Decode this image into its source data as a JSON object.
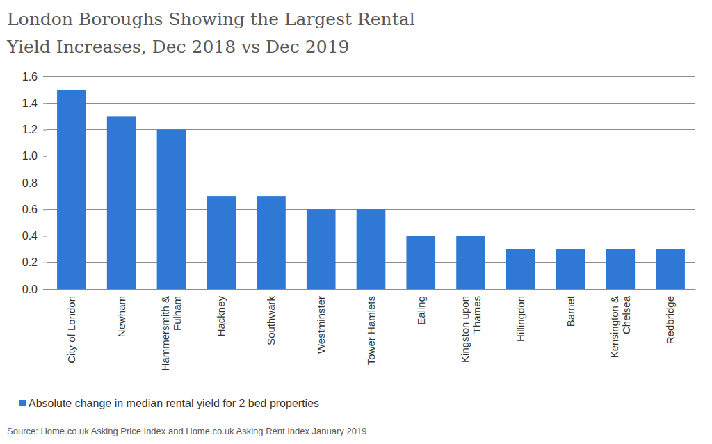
{
  "chart_data": {
    "type": "bar",
    "title": [
      "London Boroughs Showing the Largest  Rental",
      "Yield Increases, Dec 2018 vs Dec 2019"
    ],
    "categories": [
      "City of London",
      "Newham",
      "Hammersmith & Fulham",
      "Hackney",
      "Southwark",
      "Westminster",
      "Tower Hamlets",
      "Ealing",
      "Kingston upon Thames",
      "Hillingdon",
      "Barnet",
      "Kensington & Chelsea",
      "Redbridge"
    ],
    "series": [
      {
        "name": "Absolute change in median rental yield for 2 bed properties",
        "color": "#2f78d3",
        "values": [
          1.5,
          1.3,
          1.2,
          0.7,
          0.7,
          0.6,
          0.6,
          0.4,
          0.4,
          0.3,
          0.3,
          0.3,
          0.3
        ]
      }
    ],
    "ylim": [
      0,
      1.6
    ],
    "yticks": [
      {
        "value": 0,
        "label": "0.0"
      },
      0.2,
      0.4,
      0.6,
      0.8,
      {
        "value": 1,
        "label": "1.0"
      },
      1.2,
      1.4,
      1.6
    ],
    "grid": true,
    "legend": "bottom-left",
    "source": "Source: Home.co.uk Asking Price Index and Home.co.uk Asking Rent Index January 2019"
  }
}
